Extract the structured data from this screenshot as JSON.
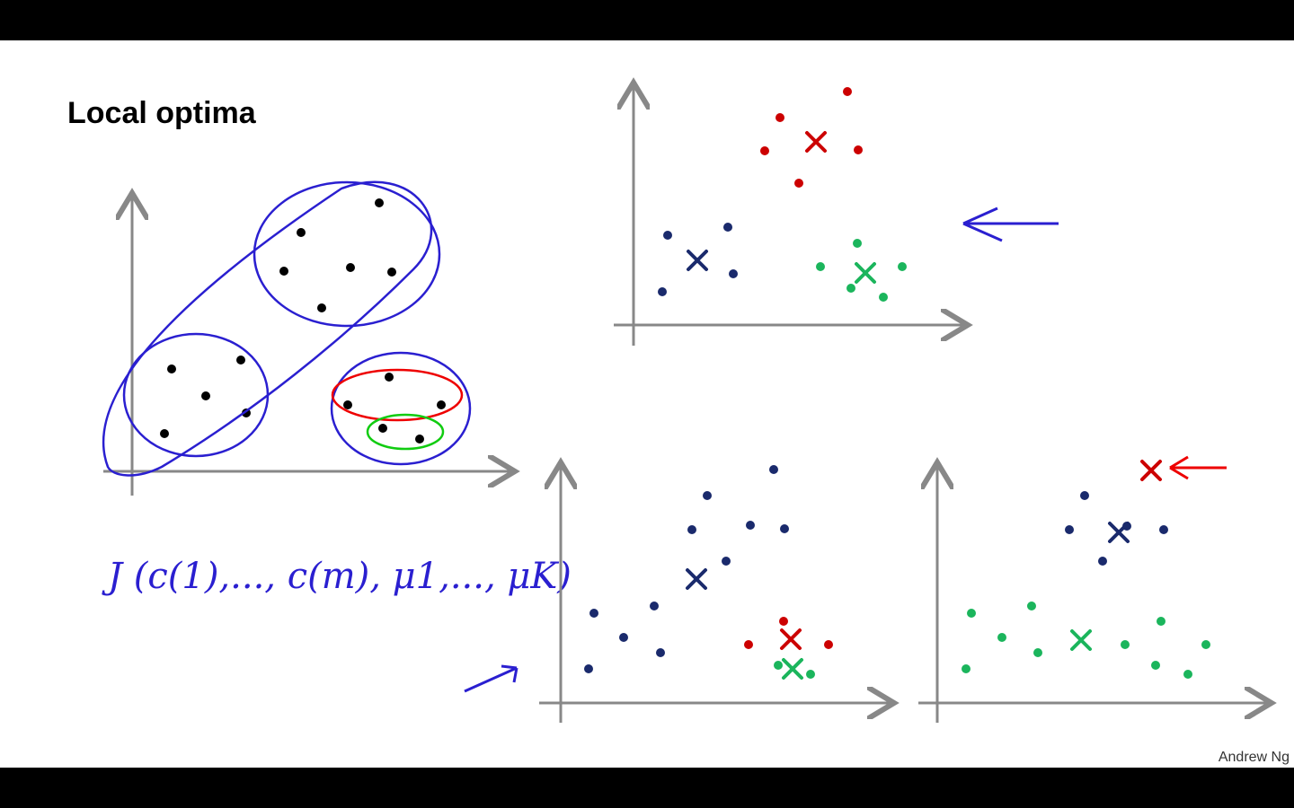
{
  "slide": {
    "title": "Local optima",
    "formula": "J (c(1),..., c(m), μ1,..., μK)",
    "credit": "Andrew Ng"
  }
}
